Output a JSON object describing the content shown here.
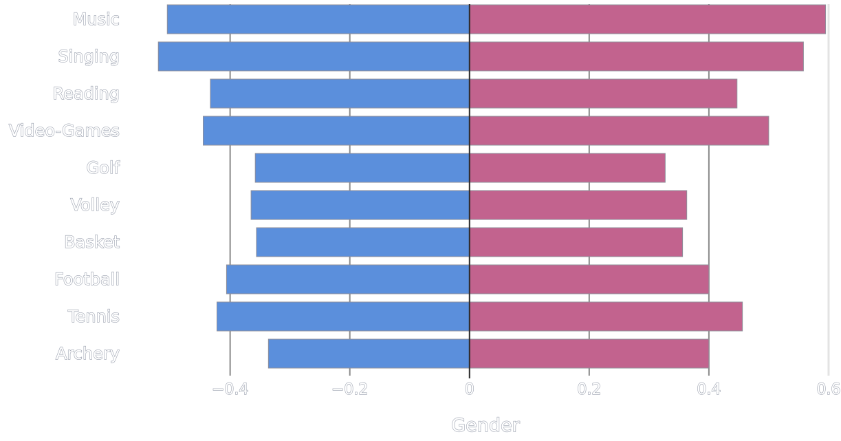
{
  "chart_data": {
    "type": "bar",
    "orientation": "horizontal",
    "title": "",
    "xlabel": "Gender",
    "ylabel": "",
    "categories": [
      "Music",
      "Singing",
      "Reading",
      "Video-Games",
      "Golf",
      "Volley",
      "Basket",
      "Football",
      "Tennis",
      "Archery"
    ],
    "series": [
      {
        "values": [
          -0.505,
          -0.52,
          -0.433,
          -0.445,
          -0.358,
          -0.365,
          -0.356,
          -0.406,
          -0.422,
          -0.336
        ],
        "color": "#5b8fdc"
      },
      {
        "values": [
          0.595,
          0.558,
          0.447,
          0.5,
          0.327,
          0.363,
          0.356,
          0.4,
          0.456,
          0.4
        ],
        "color": "#c2638e"
      }
    ],
    "xlim": [
      -0.58,
      0.615
    ],
    "xticks": [
      -0.4,
      -0.2,
      0,
      0.2,
      0.4,
      0.6
    ],
    "xtick_labels": [
      "−0.4",
      "−0.2",
      "0",
      "0.2",
      "0.4",
      "0.6"
    ],
    "grid": true,
    "legend": "none"
  }
}
